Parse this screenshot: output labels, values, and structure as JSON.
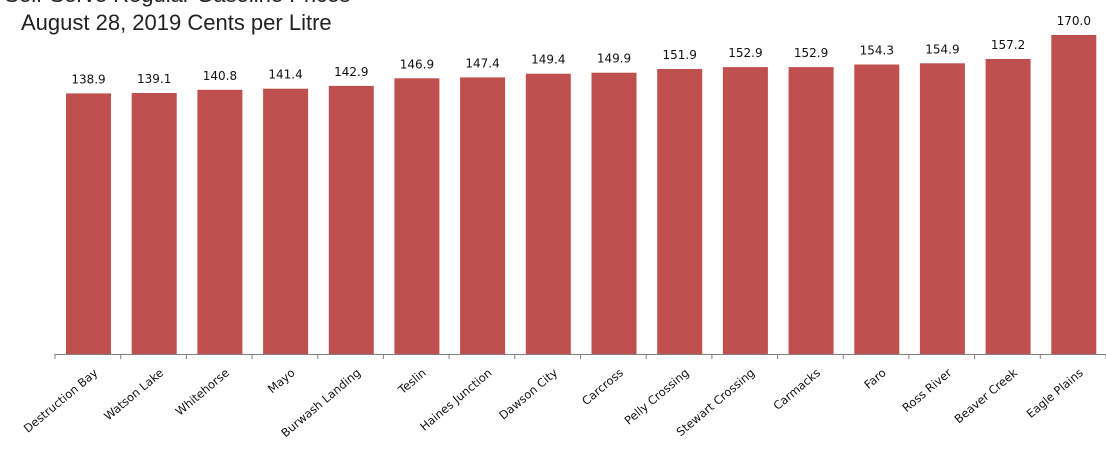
{
  "chart_data": {
    "type": "bar",
    "title": "e Self-Serve Regular Gasoline Prices",
    "subtitle": "August 28, 2019 Cents per Litre",
    "categories": [
      "Destruction Bay",
      "Watson Lake",
      "Whitehorse",
      "Mayo",
      "Burwash Landing",
      "Teslin",
      "Haines Junction",
      "Dawson City",
      "Carcross",
      "Pelly Crossing",
      "Stewart Crossing",
      "Carmacks",
      "Faro",
      "Ross River",
      "Beaver Creek",
      "Eagle Plains"
    ],
    "values": [
      138.9,
      139.1,
      140.8,
      141.4,
      142.9,
      146.9,
      147.4,
      149.4,
      149.9,
      151.9,
      152.9,
      152.9,
      154.3,
      154.9,
      157.2,
      170.0
    ],
    "value_labels": [
      "138.9",
      "139.1",
      "140.8",
      "141.4",
      "142.9",
      "146.9",
      "147.4",
      "149.4",
      "149.9",
      "151.9",
      "152.9",
      "152.9",
      "154.3",
      "154.9",
      "157.2",
      "170.0"
    ],
    "bar_color": "#c0504d",
    "axis_color": "#808080",
    "ylim": [
      0,
      170
    ],
    "grid": false,
    "legend": "none"
  }
}
